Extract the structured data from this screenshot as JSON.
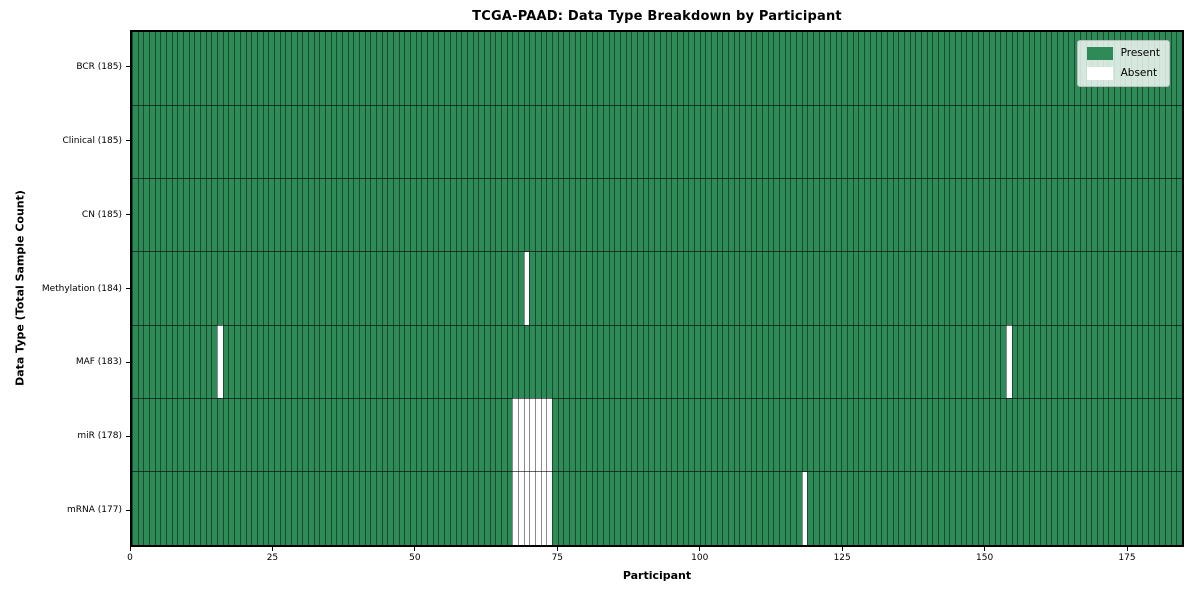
{
  "colors": {
    "present": "#2e8b57",
    "absent": "#ffffff",
    "cell_edge": "rgba(0,0,0,0.45)",
    "row_divider": "rgba(0,0,0,0.6)"
  },
  "chart_data": {
    "type": "heatmap",
    "title": "TCGA-PAAD: Data Type Breakdown by Participant",
    "xlabel": "Participant",
    "ylabel": "Data Type (Total Sample Count)",
    "xlim": [
      0,
      185
    ],
    "x_ticks": [
      0,
      25,
      50,
      75,
      100,
      125,
      150,
      175
    ],
    "n_participants": 185,
    "legend_position": "upper right",
    "grid": false,
    "legend": [
      {
        "label": "Present",
        "color": "#2e8b57"
      },
      {
        "label": "Absent",
        "color": "#ffffff"
      }
    ],
    "rows": [
      {
        "label": "BCR (185)",
        "data_type": "BCR",
        "total": 185,
        "absent_participants": []
      },
      {
        "label": "Clinical (185)",
        "data_type": "Clinical",
        "total": 185,
        "absent_participants": []
      },
      {
        "label": "CN (185)",
        "data_type": "CN",
        "total": 185,
        "absent_participants": []
      },
      {
        "label": "Methylation (184)",
        "data_type": "Methylation",
        "total": 184,
        "absent_participants": [
          69
        ]
      },
      {
        "label": "MAF (183)",
        "data_type": "MAF",
        "total": 183,
        "absent_participants": [
          15,
          154
        ]
      },
      {
        "label": "miR (178)",
        "data_type": "miR",
        "total": 178,
        "absent_participants": [
          67,
          68,
          69,
          70,
          71,
          72,
          73
        ]
      },
      {
        "label": "mRNA (177)",
        "data_type": "mRNA",
        "total": 177,
        "absent_participants": [
          67,
          68,
          69,
          70,
          71,
          72,
          73,
          118
        ]
      }
    ]
  }
}
